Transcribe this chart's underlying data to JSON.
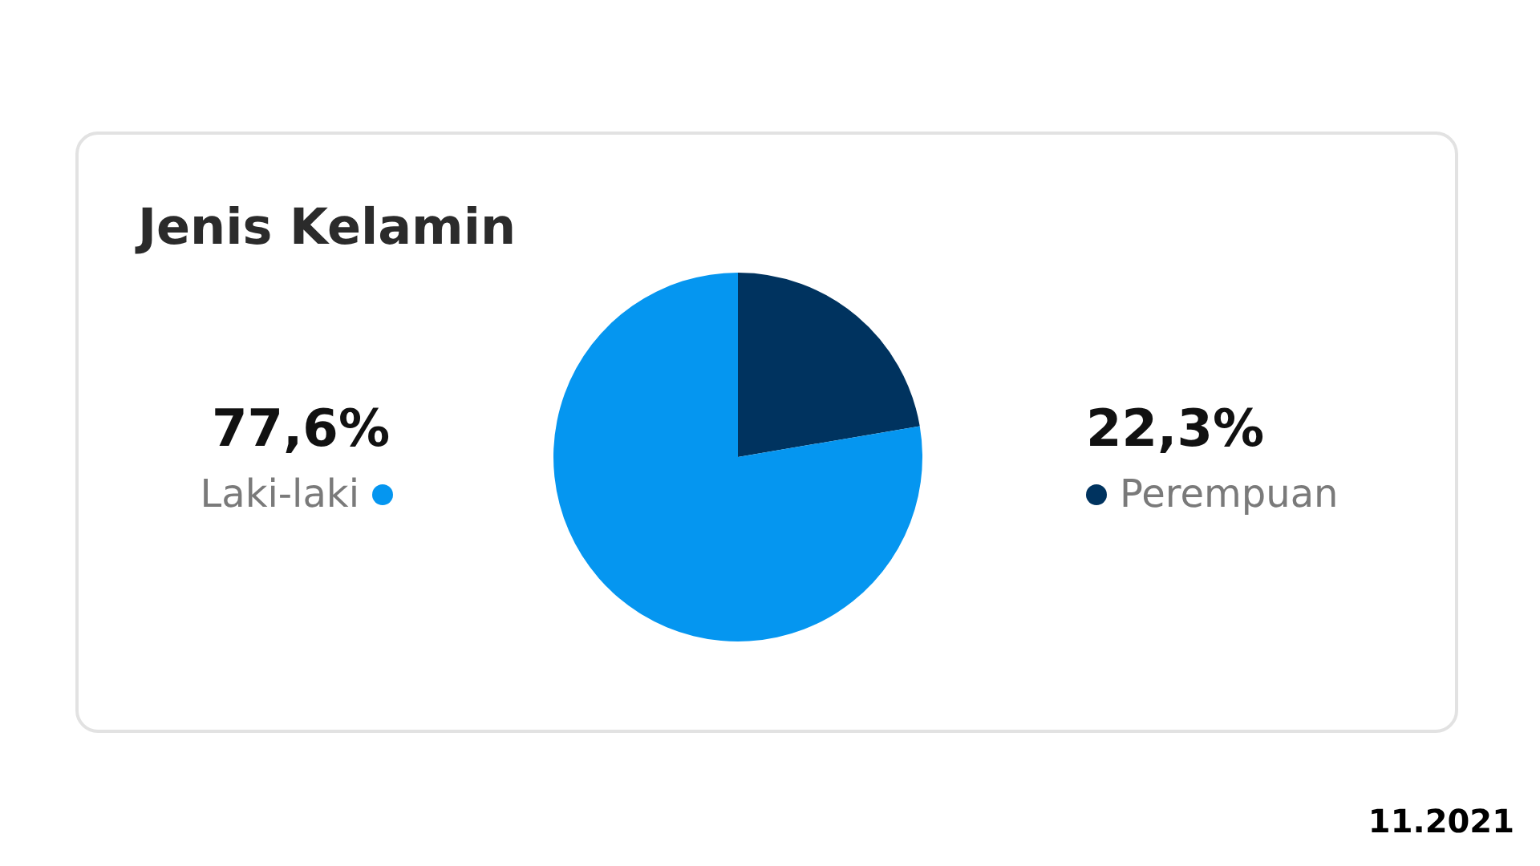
{
  "chart_data": {
    "type": "pie",
    "title": "Jenis Kelamin",
    "categories": [
      "Perempuan",
      "Laki-laki"
    ],
    "values": [
      22.3,
      77.6
    ],
    "colors": [
      "#00335f",
      "#0596f0"
    ],
    "value_labels": [
      "22,3%",
      "77,6%"
    ],
    "annotations": [
      "11.2021"
    ]
  }
}
